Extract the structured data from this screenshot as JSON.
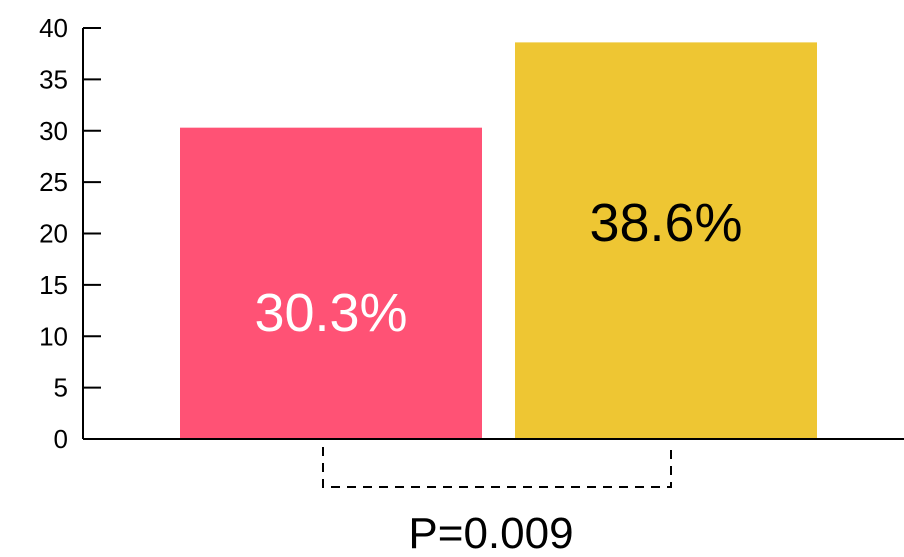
{
  "chart_data": {
    "type": "bar",
    "categories": [
      "",
      ""
    ],
    "values": [
      30.3,
      38.6
    ],
    "data_labels": [
      "30.3%",
      "38.6%"
    ],
    "colors": [
      "#ff5275",
      "#eec633"
    ],
    "label_colors": [
      "#ffffff",
      "#000000"
    ],
    "title": "",
    "xlabel": "",
    "ylabel": "",
    "ylim": [
      0,
      40
    ],
    "yticks": [
      0,
      5,
      10,
      15,
      20,
      25,
      30,
      35,
      40
    ],
    "grid": false,
    "annotation": {
      "text": "P=0.009",
      "style": "dashed bracket connecting both bars"
    }
  }
}
